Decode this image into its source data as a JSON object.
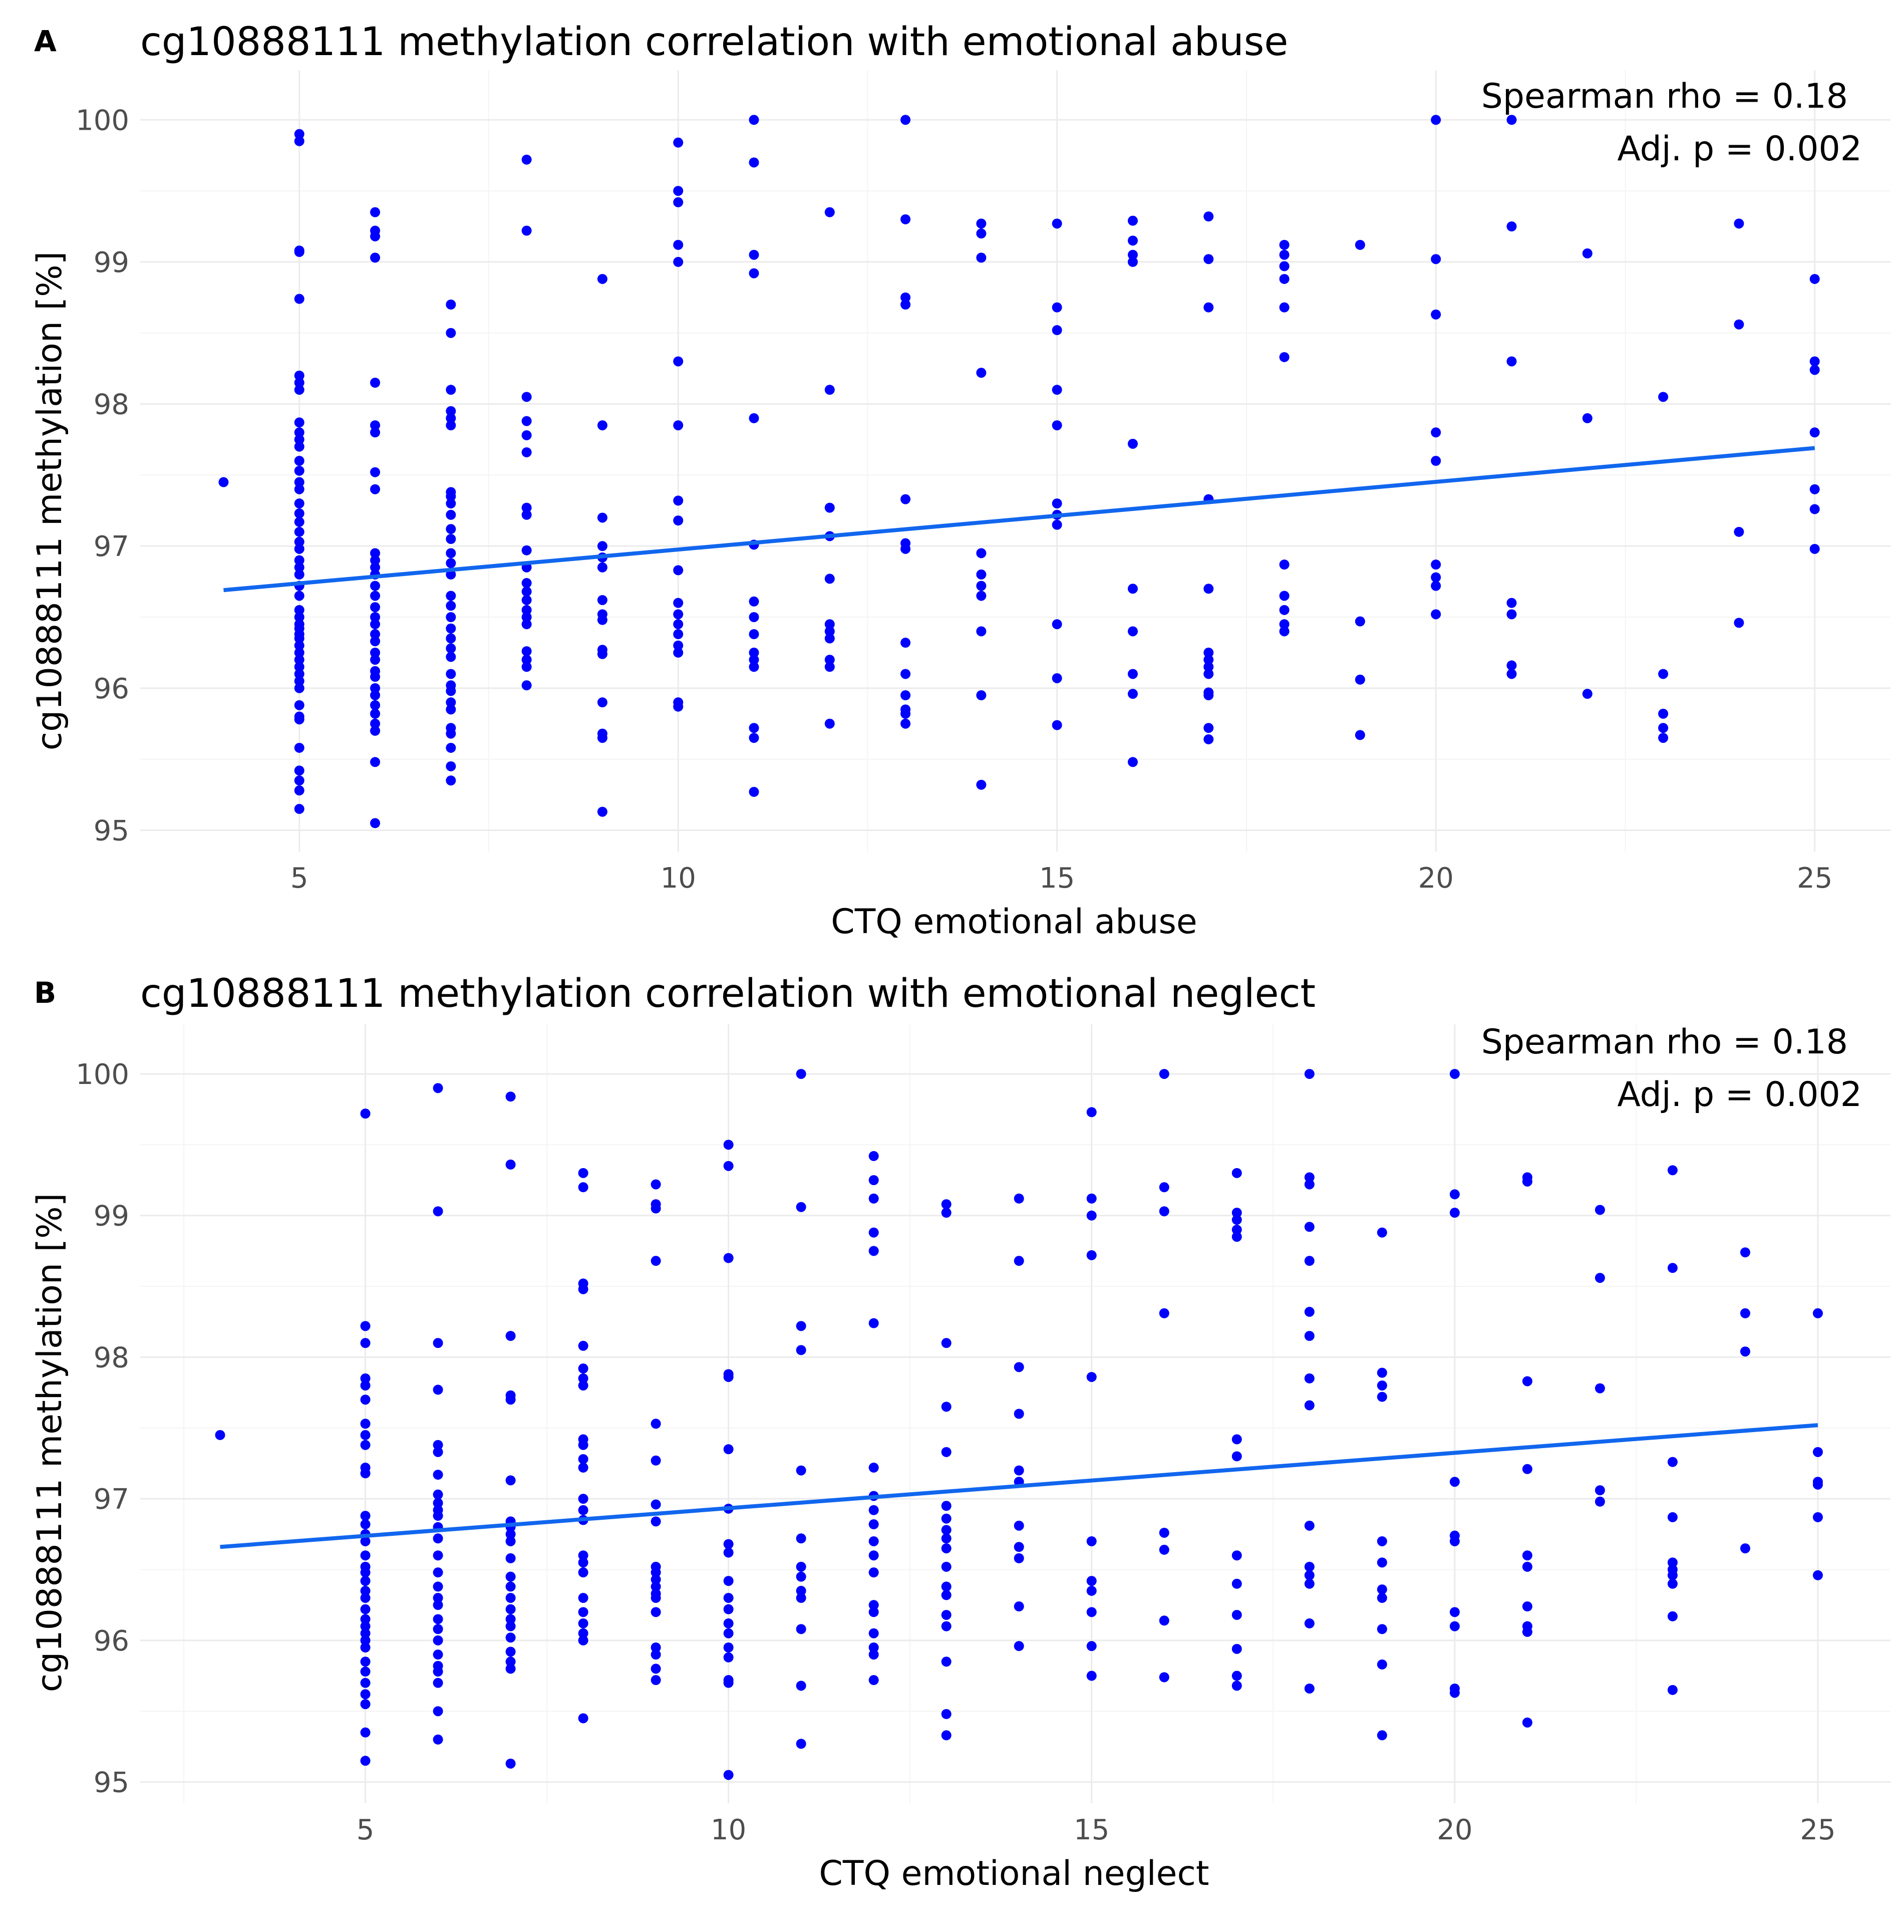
{
  "colors": {
    "points": "#0000ff",
    "fit_line": "#1166ee",
    "grid": "#ebebeb"
  },
  "chart_data": [
    {
      "type": "scatter",
      "panel": "A",
      "title": "cg10888111 methylation correlation with emotional abuse",
      "xlabel": "CTQ emotional abuse",
      "ylabel": "cg10888111 methylation [%]",
      "xlim": [
        2.9,
        26.0
      ],
      "ylim": [
        94.85,
        100.35
      ],
      "xticks": [
        5,
        10,
        15,
        20,
        25
      ],
      "yticks": [
        95,
        96,
        97,
        98,
        99,
        100
      ],
      "xtick_labels": [
        "5",
        "10",
        "15",
        "20",
        "25"
      ],
      "ytick_labels": [
        "95",
        "96",
        "97",
        "98",
        "99",
        "100"
      ],
      "annotation": {
        "rho": "Spearman rho = 0.18",
        "p": "Adj. p = 0.002"
      },
      "fit_line": {
        "x": [
          4,
          25
        ],
        "y": [
          96.69,
          97.69
        ]
      },
      "points": {
        "4": [
          97.45
        ],
        "5": [
          99.9,
          99.85,
          99.08,
          99.07,
          98.74,
          98.2,
          98.15,
          98.1,
          97.87,
          97.8,
          97.75,
          97.7,
          97.6,
          97.53,
          97.45,
          97.4,
          97.3,
          97.23,
          97.17,
          97.1,
          97.03,
          96.98,
          96.9,
          96.85,
          96.8,
          96.72,
          96.65,
          96.55,
          96.5,
          96.45,
          96.42,
          96.38,
          96.35,
          96.3,
          96.25,
          96.2,
          96.15,
          96.1,
          96.05,
          96.0,
          95.88,
          95.8,
          95.78,
          95.58,
          95.42,
          95.35,
          95.28,
          95.15
        ],
        "6": [
          99.35,
          99.22,
          99.18,
          99.03,
          98.15,
          97.85,
          97.8,
          97.52,
          97.4,
          96.95,
          96.9,
          96.85,
          96.8,
          96.72,
          96.65,
          96.57,
          96.5,
          96.45,
          96.38,
          96.33,
          96.25,
          96.2,
          96.12,
          96.08,
          96.0,
          95.95,
          95.88,
          95.82,
          95.75,
          95.7,
          95.48,
          95.05
        ],
        "7": [
          98.7,
          98.5,
          98.1,
          97.95,
          97.9,
          97.85,
          97.38,
          97.35,
          97.3,
          97.22,
          97.12,
          97.05,
          96.95,
          96.88,
          96.8,
          96.65,
          96.58,
          96.5,
          96.42,
          96.35,
          96.28,
          96.22,
          96.1,
          96.02,
          95.98,
          95.9,
          95.85,
          95.72,
          95.68,
          95.58,
          95.45,
          95.35
        ],
        "8": [
          99.72,
          99.22,
          98.05,
          97.88,
          97.78,
          97.66,
          97.27,
          97.22,
          96.97,
          96.85,
          96.74,
          96.68,
          96.62,
          96.55,
          96.5,
          96.45,
          96.26,
          96.2,
          96.15,
          96.02
        ],
        "9": [
          98.88,
          97.85,
          97.2,
          97.0,
          96.92,
          96.85,
          96.62,
          96.52,
          96.48,
          96.27,
          96.24,
          95.9,
          95.68,
          95.65,
          95.13
        ],
        "10": [
          99.84,
          99.5,
          99.42,
          99.12,
          99.0,
          98.3,
          97.85,
          97.32,
          97.18,
          96.83,
          96.6,
          96.52,
          96.45,
          96.38,
          96.3,
          96.25,
          95.9,
          95.87
        ],
        "11": [
          100.0,
          99.7,
          99.05,
          98.92,
          97.9,
          97.01,
          96.61,
          96.5,
          96.38,
          96.25,
          96.2,
          96.15,
          95.72,
          95.65,
          95.27
        ],
        "12": [
          99.35,
          98.1,
          97.27,
          97.07,
          96.77,
          96.45,
          96.4,
          96.35,
          96.2,
          96.15,
          95.75
        ],
        "13": [
          100.0,
          99.3,
          98.75,
          98.7,
          97.33,
          97.02,
          96.98,
          96.32,
          96.1,
          95.95,
          95.85,
          95.82,
          95.75
        ],
        "14": [
          99.27,
          99.2,
          99.03,
          98.22,
          96.95,
          96.8,
          96.72,
          96.65,
          96.4,
          95.95,
          95.32
        ],
        "15": [
          99.27,
          98.68,
          98.52,
          98.1,
          97.85,
          97.3,
          97.22,
          97.15,
          96.45,
          96.07,
          95.74
        ],
        "16": [
          99.29,
          99.15,
          99.05,
          99.0,
          97.72,
          96.7,
          96.4,
          96.1,
          95.96,
          95.48
        ],
        "17": [
          99.32,
          99.02,
          98.68,
          97.33,
          96.7,
          96.25,
          96.2,
          96.15,
          96.1,
          95.97,
          95.95,
          95.72,
          95.64
        ],
        "18": [
          99.12,
          99.05,
          98.97,
          98.88,
          98.68,
          98.33,
          96.87,
          96.65,
          96.55,
          96.45,
          96.4
        ],
        "19": [
          99.12,
          96.47,
          96.06,
          95.67
        ],
        "20": [
          100.0,
          99.02,
          98.63,
          97.8,
          97.6,
          96.87,
          96.78,
          96.72,
          96.52
        ],
        "21": [
          100.0,
          99.25,
          98.3,
          96.6,
          96.52,
          96.16,
          96.1
        ],
        "22": [
          99.06,
          97.9,
          95.96
        ],
        "23": [
          98.05,
          96.1,
          95.82,
          95.72,
          95.65
        ],
        "24": [
          99.27,
          98.56,
          97.1,
          96.46
        ],
        "25": [
          98.88,
          98.3,
          98.24,
          97.8,
          97.4,
          97.26,
          96.98
        ]
      }
    },
    {
      "type": "scatter",
      "panel": "B",
      "title": "cg10888111 methylation correlation with emotional neglect",
      "xlabel": "CTQ emotional neglect",
      "ylabel": "cg10888111 methylation [%]",
      "xlim": [
        1.9,
        26.0
      ],
      "ylim": [
        94.85,
        100.35
      ],
      "xticks": [
        5,
        10,
        15,
        20,
        25
      ],
      "yticks": [
        95,
        96,
        97,
        98,
        99,
        100
      ],
      "xtick_labels": [
        "5",
        "10",
        "15",
        "20",
        "25"
      ],
      "ytick_labels": [
        "95",
        "96",
        "97",
        "98",
        "99",
        "100"
      ],
      "annotation": {
        "rho": "Spearman rho = 0.18",
        "p": "Adj. p = 0.002"
      },
      "fit_line": {
        "x": [
          3,
          25
        ],
        "y": [
          96.66,
          97.52
        ]
      },
      "points": {
        "3": [
          97.45
        ],
        "5": [
          99.72,
          98.22,
          98.1,
          97.85,
          97.8,
          97.7,
          97.53,
          97.45,
          97.38,
          97.22,
          97.18,
          96.88,
          96.82,
          96.75,
          96.7,
          96.6,
          96.52,
          96.48,
          96.42,
          96.35,
          96.3,
          96.22,
          96.15,
          96.1,
          96.05,
          96.0,
          95.95,
          95.85,
          95.78,
          95.7,
          95.62,
          95.55,
          95.35,
          95.15
        ],
        "6": [
          99.9,
          99.03,
          98.1,
          97.77,
          97.38,
          97.33,
          97.17,
          97.03,
          96.97,
          96.92,
          96.88,
          96.8,
          96.72,
          96.6,
          96.48,
          96.38,
          96.3,
          96.25,
          96.15,
          96.08,
          96.0,
          95.9,
          95.82,
          95.78,
          95.7,
          95.5,
          95.3
        ],
        "7": [
          99.84,
          99.36,
          98.15,
          97.73,
          97.7,
          97.13,
          96.84,
          96.8,
          96.75,
          96.7,
          96.58,
          96.45,
          96.38,
          96.3,
          96.22,
          96.15,
          96.1,
          96.02,
          95.92,
          95.85,
          95.8,
          95.13
        ],
        "8": [
          99.3,
          99.2,
          98.52,
          98.48,
          98.08,
          97.92,
          97.85,
          97.8,
          97.42,
          97.38,
          97.28,
          97.22,
          97.0,
          96.92,
          96.85,
          96.6,
          96.55,
          96.48,
          96.3,
          96.2,
          96.12,
          96.05,
          96.0,
          95.45
        ],
        "9": [
          99.22,
          99.08,
          99.05,
          98.68,
          97.53,
          97.27,
          96.96,
          96.84,
          96.52,
          96.48,
          96.43,
          96.38,
          96.33,
          96.3,
          96.2,
          95.95,
          95.9,
          95.8,
          95.72
        ],
        "10": [
          99.5,
          99.35,
          98.7,
          97.88,
          97.86,
          97.35,
          96.93,
          96.68,
          96.62,
          96.42,
          96.3,
          96.22,
          96.12,
          96.05,
          95.95,
          95.88,
          95.72,
          95.7,
          95.05
        ],
        "11": [
          100.0,
          99.06,
          98.22,
          98.05,
          97.2,
          96.72,
          96.52,
          96.45,
          96.35,
          96.3,
          96.08,
          95.68,
          95.27
        ],
        "12": [
          99.42,
          99.25,
          99.12,
          98.88,
          98.75,
          98.24,
          97.22,
          97.02,
          96.92,
          96.82,
          96.7,
          96.6,
          96.48,
          96.25,
          96.2,
          96.05,
          95.95,
          95.9,
          95.72
        ],
        "13": [
          99.08,
          99.02,
          98.1,
          97.65,
          97.33,
          96.95,
          96.86,
          96.78,
          96.72,
          96.65,
          96.52,
          96.38,
          96.32,
          96.18,
          96.1,
          95.85,
          95.48,
          95.33
        ],
        "14": [
          99.12,
          98.68,
          97.93,
          97.6,
          97.2,
          97.12,
          96.81,
          96.66,
          96.58,
          96.24,
          95.96
        ],
        "15": [
          99.73,
          99.12,
          99.0,
          98.72,
          97.86,
          96.7,
          96.42,
          96.35,
          96.2,
          95.96,
          95.75
        ],
        "16": [
          100.0,
          99.2,
          99.03,
          98.31,
          96.76,
          96.64,
          96.14,
          95.74
        ],
        "17": [
          99.3,
          99.02,
          98.97,
          98.9,
          98.85,
          97.42,
          97.3,
          96.6,
          96.4,
          96.18,
          95.94,
          95.75,
          95.68
        ],
        "18": [
          100.0,
          99.27,
          99.22,
          98.92,
          98.68,
          98.32,
          98.15,
          97.85,
          97.66,
          96.81,
          96.52,
          96.46,
          96.4,
          96.12,
          95.66
        ],
        "19": [
          98.88,
          97.89,
          97.8,
          97.72,
          96.7,
          96.55,
          96.36,
          96.3,
          96.08,
          95.83,
          95.33
        ],
        "20": [
          100.0,
          99.15,
          99.02,
          97.12,
          96.74,
          96.7,
          96.2,
          96.1,
          95.66,
          95.63
        ],
        "21": [
          99.27,
          99.24,
          97.83,
          97.21,
          96.6,
          96.52,
          96.24,
          96.1,
          96.06,
          95.42
        ],
        "22": [
          99.04,
          98.56,
          97.78,
          97.06,
          96.98
        ],
        "23": [
          99.32,
          98.63,
          97.26,
          96.87,
          96.55,
          96.5,
          96.46,
          96.4,
          96.17,
          95.65
        ],
        "24": [
          98.74,
          98.31,
          98.04,
          96.65
        ],
        "25": [
          98.31,
          97.33,
          97.12,
          97.1,
          96.87,
          96.46
        ]
      }
    }
  ]
}
